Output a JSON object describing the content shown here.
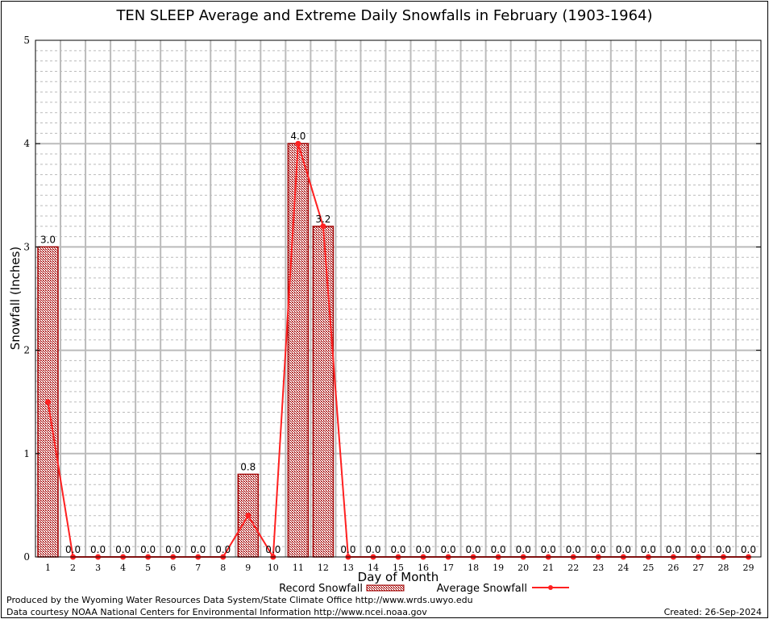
{
  "chart_data": {
    "type": "bar",
    "title": "TEN SLEEP Average and Extreme Daily Snowfalls in February (1903-1964)",
    "xlabel": "Day of Month",
    "ylabel": "Snowfall (Inches)",
    "ylim": [
      0,
      5
    ],
    "yticks": [
      "0",
      "1",
      "2",
      "3",
      "4",
      "5"
    ],
    "categories": [
      "1",
      "2",
      "3",
      "4",
      "5",
      "6",
      "7",
      "8",
      "9",
      "10",
      "11",
      "12",
      "13",
      "14",
      "15",
      "16",
      "17",
      "18",
      "19",
      "20",
      "21",
      "22",
      "23",
      "24",
      "25",
      "26",
      "27",
      "28",
      "29"
    ],
    "series": [
      {
        "name": "Record Snowfall",
        "kind": "bar",
        "color": "#a00000",
        "values": [
          3.0,
          0,
          0,
          0,
          0,
          0,
          0,
          0,
          0.8,
          0,
          4.0,
          3.2,
          0,
          0,
          0,
          0,
          0,
          0,
          0,
          0,
          0,
          0,
          0,
          0,
          0,
          0,
          0,
          0,
          0
        ],
        "labels": [
          "3.0",
          "0.0",
          "0.0",
          "0.0",
          "0.0",
          "0.0",
          "0.0",
          "0.0",
          "0.8",
          "0.0",
          "4.0",
          "3.2",
          "0.0",
          "0.0",
          "0.0",
          "0.0",
          "0.0",
          "0.0",
          "0.0",
          "0.0",
          "0.0",
          "0.0",
          "0.0",
          "0.0",
          "0.0",
          "0.0",
          "0.0",
          "0.0",
          "0.0"
        ]
      },
      {
        "name": "Average Snowfall",
        "kind": "line",
        "color": "#ff2020",
        "values": [
          1.5,
          0,
          0,
          0,
          0,
          0,
          0,
          0,
          0.4,
          0,
          4.0,
          3.2,
          0,
          0,
          0,
          0,
          0,
          0,
          0,
          0,
          0,
          0,
          0,
          0,
          0,
          0,
          0,
          0,
          0
        ]
      }
    ],
    "grid": true,
    "legend": "bottom-center"
  },
  "footer": {
    "produced": "Produced by the Wyoming Water Resources Data System/State Climate Office http://www.wrds.uwyo.edu",
    "courtesy": "Data courtesy NOAA National Centers for Environmental Information http://www.ncei.noaa.gov",
    "created": "Created:  26-Sep-2024"
  }
}
